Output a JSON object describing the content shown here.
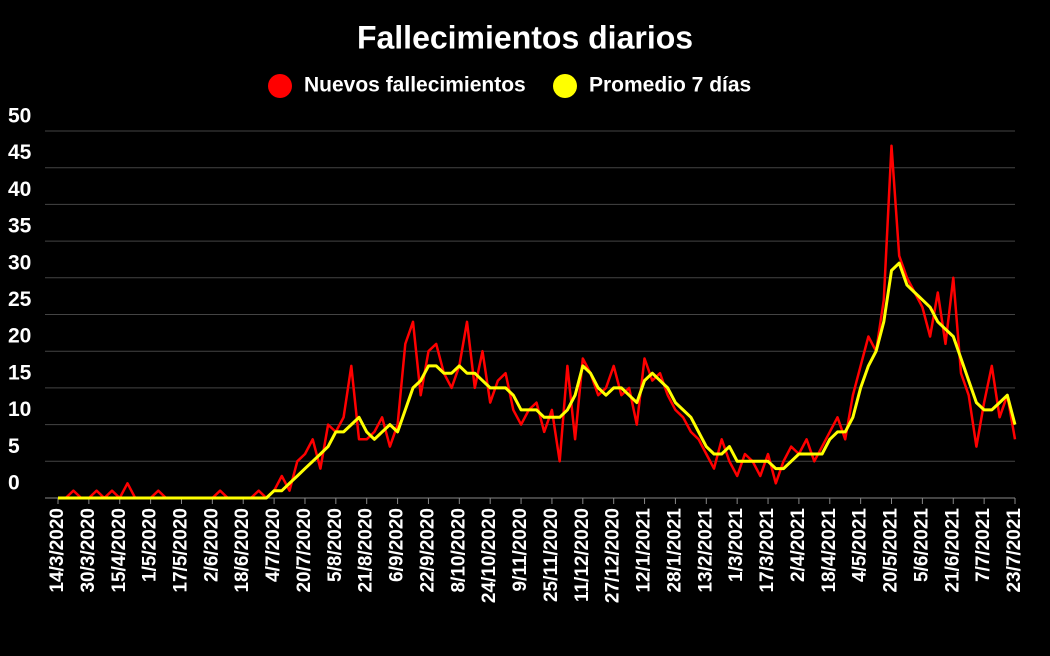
{
  "chart_data": {
    "type": "line",
    "title": "Fallecimientos diarios",
    "categories": [
      "14/3/2020",
      null,
      null,
      null,
      "30/3/2020",
      null,
      null,
      null,
      "15/4/2020",
      null,
      null,
      null,
      "1/5/2020",
      null,
      null,
      null,
      "17/5/2020",
      null,
      null,
      null,
      "2/6/2020",
      null,
      null,
      null,
      "18/6/2020",
      null,
      null,
      null,
      "4/7/2020",
      null,
      null,
      null,
      "20/7/2020",
      null,
      null,
      null,
      "5/8/2020",
      null,
      null,
      null,
      "21/8/2020",
      null,
      null,
      null,
      "6/9/2020",
      null,
      null,
      null,
      "22/9/2020",
      null,
      null,
      null,
      "8/10/2020",
      null,
      null,
      null,
      "24/10/2020",
      null,
      null,
      null,
      "9/11/2020",
      null,
      null,
      null,
      "25/11/2020",
      null,
      null,
      null,
      "11/12/2020",
      null,
      null,
      null,
      "27/12/2020",
      null,
      null,
      null,
      "12/1/2021",
      null,
      null,
      null,
      "28/1/2021",
      null,
      null,
      null,
      "13/2/2021",
      null,
      null,
      null,
      "1/3/2021",
      null,
      null,
      null,
      "17/3/2021",
      null,
      null,
      null,
      "2/4/2021",
      null,
      null,
      null,
      "18/4/2021",
      null,
      null,
      null,
      "4/5/2021",
      null,
      null,
      null,
      "20/5/2021",
      null,
      null,
      null,
      "5/6/2021",
      null,
      null,
      null,
      "21/6/2021",
      null,
      null,
      null,
      "7/7/2021",
      null,
      null,
      null,
      "23/7/2021"
    ],
    "series": [
      {
        "name": "Nuevos fallecimientos",
        "color": "#ff0000",
        "values": [
          0,
          0,
          1,
          0,
          0,
          1,
          0,
          1,
          0,
          2,
          0,
          0,
          0,
          1,
          0,
          0,
          0,
          0,
          0,
          0,
          0,
          1,
          0,
          0,
          0,
          0,
          1,
          0,
          1,
          3,
          1,
          5,
          6,
          8,
          4,
          10,
          9,
          11,
          18,
          8,
          8,
          9,
          11,
          7,
          10,
          21,
          24,
          14,
          20,
          21,
          17,
          15,
          18,
          24,
          15,
          20,
          13,
          16,
          17,
          12,
          10,
          12,
          13,
          9,
          12,
          5,
          18,
          8,
          19,
          17,
          14,
          15,
          18,
          14,
          15,
          10,
          19,
          16,
          17,
          14,
          12,
          11,
          9,
          8,
          6,
          4,
          8,
          5,
          3,
          6,
          5,
          3,
          6,
          2,
          5,
          7,
          6,
          8,
          5,
          7,
          9,
          11,
          8,
          14,
          18,
          22,
          20,
          27,
          48,
          33,
          30,
          28,
          26,
          22,
          28,
          21,
          30,
          17,
          14,
          7,
          13,
          18,
          11,
          14,
          8
        ]
      },
      {
        "name": "Promedio 7 días",
        "color": "#ffff00",
        "values": [
          0,
          0,
          0,
          0,
          0,
          0,
          0,
          0,
          0,
          0,
          0,
          0,
          0,
          0,
          0,
          0,
          0,
          0,
          0,
          0,
          0,
          0,
          0,
          0,
          0,
          0,
          0,
          0,
          1,
          1,
          2,
          3,
          4,
          5,
          6,
          7,
          9,
          9,
          10,
          11,
          9,
          8,
          9,
          10,
          9,
          12,
          15,
          16,
          18,
          18,
          17,
          17,
          18,
          17,
          17,
          16,
          15,
          15,
          15,
          14,
          12,
          12,
          12,
          11,
          11,
          11,
          12,
          14,
          18,
          17,
          15,
          14,
          15,
          15,
          14,
          13,
          16,
          17,
          16,
          15,
          13,
          12,
          11,
          9,
          7,
          6,
          6,
          7,
          5,
          5,
          5,
          5,
          5,
          4,
          4,
          5,
          6,
          6,
          6,
          6,
          8,
          9,
          9,
          11,
          15,
          18,
          20,
          24,
          31,
          32,
          29,
          28,
          27,
          26,
          24,
          23,
          22,
          19,
          16,
          13,
          12,
          12,
          13,
          14,
          10
        ]
      }
    ],
    "ylim": [
      0,
      50
    ],
    "yticks": [
      0,
      5,
      10,
      15,
      20,
      25,
      30,
      35,
      40,
      45,
      50
    ],
    "grid": true,
    "legend": "top"
  }
}
